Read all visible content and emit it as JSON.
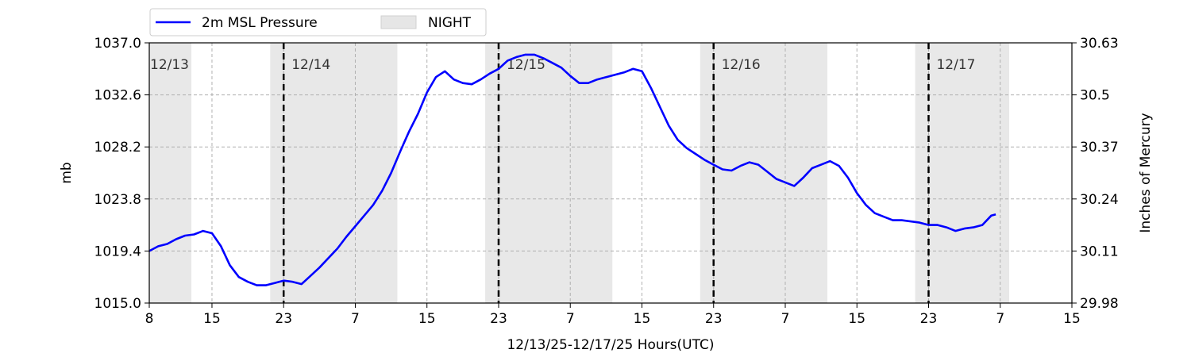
{
  "chart_data": {
    "type": "line",
    "xlabel": "12/13/25-12/17/25  Hours(UTC)",
    "ylabel": "mb",
    "ylabel_right": "Inches of Mercury",
    "x_unit": "hours since 12/13/25 00 UTC",
    "xlim": [
      8,
      111
    ],
    "ylim": [
      1015.0,
      1037.0
    ],
    "x_ticks": [
      {
        "x": 8,
        "label": "8"
      },
      {
        "x": 15,
        "label": "15"
      },
      {
        "x": 23,
        "label": "23"
      },
      {
        "x": 31,
        "label": "7"
      },
      {
        "x": 39,
        "label": "15"
      },
      {
        "x": 47,
        "label": "23"
      },
      {
        "x": 55,
        "label": "7"
      },
      {
        "x": 63,
        "label": "15"
      },
      {
        "x": 71,
        "label": "23"
      },
      {
        "x": 79,
        "label": "7"
      },
      {
        "x": 87,
        "label": "15"
      },
      {
        "x": 95,
        "label": "23"
      },
      {
        "x": 103,
        "label": "7"
      },
      {
        "x": 111,
        "label": "15"
      }
    ],
    "y_ticks": [
      "1015.0",
      "1019.4",
      "1023.8",
      "1028.2",
      "1032.6",
      "1037.0"
    ],
    "y_ticks_right": [
      "29.98",
      "30.11",
      "30.24",
      "30.37",
      "30.5",
      "30.63"
    ],
    "grid": true,
    "legend": {
      "placement": "top-left",
      "entries": [
        {
          "label": "2m MSL Pressure",
          "color": "#0000ff",
          "kind": "line"
        },
        {
          "label": "NIGHT",
          "color": "#e6e6e6",
          "kind": "patch"
        }
      ]
    },
    "night_spans": [
      [
        8,
        12.7
      ],
      [
        21.5,
        35.7
      ],
      [
        45.5,
        59.7
      ],
      [
        69.5,
        83.7
      ],
      [
        93.5,
        104.0
      ]
    ],
    "day_boundaries": [
      {
        "x": 8,
        "label": "12/13",
        "dashed": false
      },
      {
        "x": 23,
        "label": "12/14",
        "dashed": true
      },
      {
        "x": 47,
        "label": "12/15",
        "dashed": true
      },
      {
        "x": 71,
        "label": "12/16",
        "dashed": true
      },
      {
        "x": 95,
        "label": "12/17",
        "dashed": true
      }
    ],
    "series": [
      {
        "name": "2m MSL Pressure",
        "color": "#0000ff",
        "points": [
          [
            8,
            1019.4
          ],
          [
            9,
            1019.8
          ],
          [
            10,
            1020.0
          ],
          [
            11,
            1020.4
          ],
          [
            12,
            1020.7
          ],
          [
            13,
            1020.8
          ],
          [
            14,
            1021.1
          ],
          [
            15,
            1020.9
          ],
          [
            16,
            1019.8
          ],
          [
            17,
            1018.2
          ],
          [
            18,
            1017.2
          ],
          [
            19,
            1016.8
          ],
          [
            20,
            1016.5
          ],
          [
            21,
            1016.5
          ],
          [
            22,
            1016.7
          ],
          [
            23,
            1016.9
          ],
          [
            24,
            1016.8
          ],
          [
            25,
            1016.6
          ],
          [
            26,
            1017.3
          ],
          [
            27,
            1018.0
          ],
          [
            28,
            1018.8
          ],
          [
            29,
            1019.6
          ],
          [
            30,
            1020.6
          ],
          [
            31,
            1021.5
          ],
          [
            32,
            1022.4
          ],
          [
            33,
            1023.3
          ],
          [
            34,
            1024.5
          ],
          [
            35,
            1026.0
          ],
          [
            36,
            1027.8
          ],
          [
            37,
            1029.5
          ],
          [
            38,
            1031.0
          ],
          [
            39,
            1032.8
          ],
          [
            40,
            1034.1
          ],
          [
            41,
            1034.6
          ],
          [
            42,
            1033.9
          ],
          [
            43,
            1033.6
          ],
          [
            44,
            1033.5
          ],
          [
            45,
            1033.9
          ],
          [
            46,
            1034.4
          ],
          [
            47,
            1034.8
          ],
          [
            48,
            1035.5
          ],
          [
            49,
            1035.8
          ],
          [
            50,
            1036.0
          ],
          [
            51,
            1036.0
          ],
          [
            52,
            1035.7
          ],
          [
            53,
            1035.3
          ],
          [
            54,
            1034.9
          ],
          [
            55,
            1034.2
          ],
          [
            56,
            1033.6
          ],
          [
            57,
            1033.6
          ],
          [
            58,
            1033.9
          ],
          [
            59,
            1034.1
          ],
          [
            60,
            1034.3
          ],
          [
            61,
            1034.5
          ],
          [
            62,
            1034.8
          ],
          [
            63,
            1034.6
          ],
          [
            64,
            1033.2
          ],
          [
            65,
            1031.6
          ],
          [
            66,
            1030.0
          ],
          [
            67,
            1028.8
          ],
          [
            68,
            1028.1
          ],
          [
            69,
            1027.6
          ],
          [
            70,
            1027.1
          ],
          [
            71,
            1026.7
          ],
          [
            72,
            1026.3
          ],
          [
            73,
            1026.2
          ],
          [
            74,
            1026.6
          ],
          [
            75,
            1026.9
          ],
          [
            76,
            1026.7
          ],
          [
            77,
            1026.1
          ],
          [
            78,
            1025.5
          ],
          [
            79,
            1025.2
          ],
          [
            80,
            1024.9
          ],
          [
            81,
            1025.6
          ],
          [
            82,
            1026.4
          ],
          [
            83,
            1026.7
          ],
          [
            84,
            1027.0
          ],
          [
            85,
            1026.6
          ],
          [
            86,
            1025.6
          ],
          [
            87,
            1024.3
          ],
          [
            88,
            1023.3
          ],
          [
            89,
            1022.6
          ],
          [
            90,
            1022.3
          ],
          [
            91,
            1022.0
          ],
          [
            92,
            1022.0
          ],
          [
            93,
            1021.9
          ],
          [
            94,
            1021.8
          ],
          [
            95,
            1021.6
          ],
          [
            96,
            1021.6
          ],
          [
            97,
            1021.4
          ],
          [
            98,
            1021.1
          ],
          [
            99,
            1021.3
          ],
          [
            100,
            1021.4
          ],
          [
            101,
            1021.6
          ],
          [
            102,
            1022.4
          ],
          [
            102.5,
            1022.5
          ]
        ]
      }
    ]
  }
}
